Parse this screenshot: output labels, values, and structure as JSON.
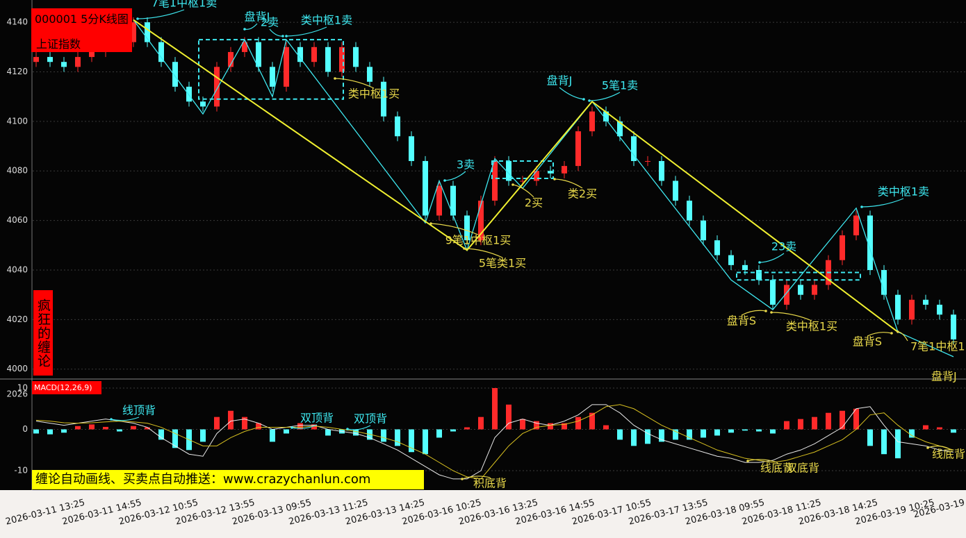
{
  "header": {
    "code_title": "000001 5分K线图",
    "name": "上证指数"
  },
  "side_label": "疯狂的缠论",
  "banner": "缠论自动画线、买卖点自动推送：www.crazychanlun.com",
  "chart_data": [
    {
      "type": "candlestick",
      "up_color": "#ff2a2a",
      "down_color": "#54ffff",
      "ylim": [
        3996,
        4149
      ],
      "yticks": [
        4000,
        4020,
        4040,
        4060,
        4080,
        4100,
        4120,
        4140
      ],
      "grid": true,
      "open": [
        4124,
        4126,
        4124,
        4122,
        4126,
        4128,
        4130,
        4132,
        4140,
        4132,
        4124,
        4114,
        4108,
        4106,
        4122,
        4128,
        4132,
        4122,
        4114,
        4130,
        4124,
        4130,
        4120,
        4130,
        4122,
        4116,
        4102,
        4094,
        4084,
        4062,
        4074,
        4062,
        4052,
        4068,
        4084,
        4076,
        4076,
        4080,
        4079,
        4082,
        4096,
        4104,
        4100,
        4094,
        4084,
        4084,
        4076,
        4068,
        4060,
        4052,
        4046,
        4042,
        4040,
        4036,
        4026,
        4034,
        4030,
        4034,
        4044,
        4054,
        4062,
        4040,
        4030,
        4020,
        4028,
        4026,
        4022
      ],
      "high": [
        4128,
        4128,
        4126,
        4128,
        4130,
        4132,
        4134,
        4142,
        4142,
        4134,
        4126,
        4116,
        4110,
        4124,
        4130,
        4134,
        4134,
        4124,
        4132,
        4132,
        4132,
        4132,
        4132,
        4132,
        4124,
        4118,
        4104,
        4096,
        4086,
        4076,
        4076,
        4064,
        4070,
        4086,
        4086,
        4078,
        4082,
        4082,
        4084,
        4098,
        4106,
        4106,
        4102,
        4096,
        4086,
        4086,
        4078,
        4070,
        4062,
        4054,
        4048,
        4044,
        4042,
        4038,
        4036,
        4036,
        4036,
        4046,
        4056,
        4064,
        4064,
        4042,
        4032,
        4030,
        4030,
        4028,
        4024
      ],
      "low": [
        4122,
        4122,
        4120,
        4120,
        4124,
        4126,
        4128,
        4130,
        4130,
        4122,
        4112,
        4106,
        4104,
        4104,
        4120,
        4126,
        4120,
        4112,
        4112,
        4122,
        4122,
        4118,
        4118,
        4120,
        4114,
        4100,
        4092,
        4082,
        4060,
        4060,
        4060,
        4050,
        4050,
        4066,
        4074,
        4074,
        4074,
        4077,
        4077,
        4080,
        4094,
        4098,
        4092,
        4082,
        4082,
        4074,
        4066,
        4058,
        4050,
        4044,
        4040,
        4038,
        4034,
        4024,
        4024,
        4028,
        4028,
        4032,
        4042,
        4052,
        4038,
        4028,
        4018,
        4018,
        4024,
        4020,
        4010
      ],
      "close": [
        4126,
        4124,
        4122,
        4126,
        4128,
        4130,
        4132,
        4140,
        4132,
        4124,
        4114,
        4108,
        4106,
        4122,
        4128,
        4132,
        4122,
        4114,
        4130,
        4124,
        4130,
        4120,
        4130,
        4122,
        4116,
        4102,
        4094,
        4084,
        4062,
        4074,
        4062,
        4052,
        4068,
        4084,
        4076,
        4076,
        4080,
        4079,
        4082,
        4096,
        4104,
        4100,
        4094,
        4084,
        4084,
        4076,
        4068,
        4060,
        4052,
        4046,
        4042,
        4040,
        4036,
        4026,
        4034,
        4030,
        4034,
        4044,
        4054,
        4062,
        4040,
        4030,
        4020,
        4028,
        4026,
        4022,
        4012
      ],
      "strokes": {
        "color": "#3ee8f0",
        "x": [
          7,
          12,
          15,
          17,
          18,
          28,
          29,
          31,
          33,
          35,
          40,
          50,
          53,
          59,
          62,
          66
        ],
        "values": [
          4141,
          4103,
          4133,
          4110,
          4133,
          4059,
          4076,
          4048,
          4085,
          4073,
          4108,
          4036,
          4024,
          4065,
          4015,
          4005
        ]
      },
      "segments": {
        "color": "#f0f030",
        "x": [
          7,
          31,
          40,
          62
        ],
        "values": [
          4141,
          4048,
          4108,
          4015
        ]
      },
      "zones": {
        "color": "#3ee8f0",
        "items": [
          {
            "x": [
              11.7,
              22.1
            ],
            "range": [
              4109,
              4133
            ]
          },
          {
            "x": [
              32.8,
              37.2
            ],
            "range": [
              4077,
              4084
            ]
          },
          {
            "x": [
              50.4,
              59.3
            ],
            "range": [
              4036,
              4039
            ]
          }
        ]
      },
      "annotations": [
        {
          "text": "7笔1中枢1卖",
          "color": "#3ee8f0"
        },
        {
          "text": "盘背J",
          "color": "#3ee8f0"
        },
        {
          "text": "2卖",
          "color": "#3ee8f0"
        },
        {
          "text": "类中枢1卖",
          "color": "#3ee8f0"
        },
        {
          "text": "类中枢1买",
          "color": "#e8d84a"
        },
        {
          "text": "3卖",
          "color": "#3ee8f0"
        },
        {
          "text": "9笔1中枢1买",
          "color": "#e8d84a"
        },
        {
          "text": "5笔类1买",
          "color": "#e8d84a"
        },
        {
          "text": "2买",
          "color": "#e8d84a"
        },
        {
          "text": "类2买",
          "color": "#e8d84a"
        },
        {
          "text": "盘背J",
          "color": "#3ee8f0"
        },
        {
          "text": "5笔1卖",
          "color": "#3ee8f0"
        },
        {
          "text": "23卖",
          "color": "#3ee8f0"
        },
        {
          "text": "盘背S",
          "color": "#e8d84a"
        },
        {
          "text": "类中枢1买",
          "color": "#e8d84a"
        },
        {
          "text": "类中枢1卖",
          "color": "#3ee8f0"
        },
        {
          "text": "盘背S",
          "color": "#e8d84a"
        },
        {
          "text": "7笔1中枢1",
          "color": "#e8d84a"
        },
        {
          "text": "盘背J",
          "color": "#e8d84a"
        }
      ]
    },
    {
      "type": "macd",
      "title": "MACD(12,26,9)",
      "corner_label": "2026",
      "ylim": [
        -14.7,
        11.85
      ],
      "yticks": [
        -10,
        0,
        10
      ],
      "grid": true,
      "pos_color": "#ff2a2a",
      "neg_color": "#54ffff",
      "values": [
        -1,
        -1.2,
        -0.8,
        0.8,
        1.2,
        0.6,
        -0.5,
        0.8,
        0.5,
        -2.5,
        -4.5,
        -5,
        -3,
        3,
        4.5,
        3,
        1.5,
        -3,
        -1,
        1.5,
        1.2,
        -1.5,
        -1,
        -1.5,
        -2.5,
        -3,
        -4,
        -5.5,
        -6,
        -2,
        -0.5,
        0.5,
        3,
        10,
        6,
        2.5,
        2,
        1.5,
        1.5,
        3,
        4,
        1,
        -2.5,
        -4,
        -3.5,
        -3,
        -2.5,
        -2.5,
        -2,
        -1.5,
        -0.8,
        -0.3,
        -0.5,
        -1,
        2,
        2.5,
        3,
        4,
        4.5,
        5,
        -4,
        -6,
        -7,
        -2,
        1,
        0.5,
        -0.8
      ],
      "series": [
        {
          "name": "DIF",
          "color": "#e8e8e8",
          "values": [
            2,
            1.5,
            1,
            1.5,
            2,
            2.5,
            2,
            1.5,
            0.5,
            -2,
            -4,
            -6,
            -6.5,
            -1,
            2,
            2.5,
            1.5,
            0,
            0.5,
            1,
            1,
            0,
            -0.5,
            -1,
            -2,
            -3.5,
            -5,
            -7,
            -9,
            -11,
            -12,
            -12,
            -10,
            -2,
            1.5,
            2.5,
            1.5,
            1,
            2,
            3.5,
            6,
            6,
            4,
            1,
            -1,
            -2.5,
            -3.5,
            -4.5,
            -5.5,
            -6.5,
            -7,
            -8,
            -8,
            -7.5,
            -6,
            -5,
            -3.5,
            -1.5,
            0.5,
            5,
            5.5,
            1,
            -3,
            -3.5,
            -4,
            -5,
            -5.5
          ]
        },
        {
          "name": "DEA",
          "color": "#d8c020",
          "values": [
            2.2,
            2,
            1.6,
            1.5,
            1.6,
            1.8,
            2,
            1.8,
            1.5,
            0.5,
            -1,
            -2.5,
            -4,
            -4,
            -2,
            -0.5,
            0.5,
            0.5,
            0.5,
            0.5,
            0.8,
            0.5,
            0,
            -0.5,
            -1.2,
            -2,
            -3,
            -4.5,
            -6,
            -8,
            -10,
            -11.5,
            -12,
            -8,
            -4,
            -1,
            0.5,
            1,
            1.2,
            2,
            3.5,
            5.5,
            6,
            5,
            3,
            1,
            -0.5,
            -2,
            -3.5,
            -5,
            -6,
            -7,
            -7.5,
            -8,
            -7.5,
            -6.5,
            -5.5,
            -4,
            -2.5,
            0,
            3.5,
            4,
            1,
            -1.5,
            -3,
            -4,
            -5
          ]
        }
      ],
      "annotations": [
        {
          "text": "线顶背",
          "color": "#3ee8f0"
        },
        {
          "text": "双顶背",
          "color": "#3ee8f0"
        },
        {
          "text": "双顶背",
          "color": "#3ee8f0"
        },
        {
          "text": "积底背",
          "color": "#e8d84a"
        },
        {
          "text": "线底背",
          "color": "#e8d84a"
        },
        {
          "text": "双底背",
          "color": "#e8d84a"
        },
        {
          "text": "线底背",
          "color": "#e8d84a"
        }
      ],
      "x_labels": [
        "2026-03-11 13:25",
        "2026-03-11 14:55",
        "2026-03-12 10:55",
        "2026-03-12 13:55",
        "2026-03-13 09:55",
        "2026-03-13 11:25",
        "2026-03-13 14:25",
        "2026-03-16 10:25",
        "2026-03-16 13:25",
        "2026-03-16 14:55",
        "2026-03-17 10:55",
        "2026-03-17 13:55",
        "2026-03-18 09:55",
        "2026-03-18 11:25",
        "2026-03-18 14:25",
        "2026-03-19 10:25",
        "2026-03-19"
      ]
    }
  ]
}
